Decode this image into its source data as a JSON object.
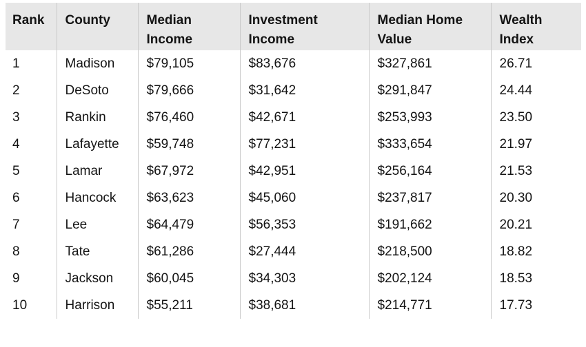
{
  "colors": {
    "header_bg": "#e7e7e7",
    "separator": "#c9c9c9",
    "text": "#141414",
    "body_bg": "#ffffff"
  },
  "chart_data": {
    "type": "table",
    "title": "",
    "columns": [
      "Rank",
      "County",
      "Median Income",
      "Investment Income",
      "Median Home Value",
      "Wealth Index"
    ],
    "header_labels_display": [
      "Rank",
      "County",
      "Median\nIncome",
      "Investment\nIncome",
      "Median Home\nValue",
      "Wealth\nIndex"
    ],
    "rows": [
      {
        "rank": "1",
        "county": "Madison",
        "median_income": "$79,105",
        "investment_income": "$83,676",
        "median_home_value": "$327,861",
        "wealth_index": "26.71"
      },
      {
        "rank": "2",
        "county": "DeSoto",
        "median_income": "$79,666",
        "investment_income": "$31,642",
        "median_home_value": "$291,847",
        "wealth_index": "24.44"
      },
      {
        "rank": "3",
        "county": "Rankin",
        "median_income": "$76,460",
        "investment_income": "$42,671",
        "median_home_value": "$253,993",
        "wealth_index": "23.50"
      },
      {
        "rank": "4",
        "county": "Lafayette",
        "median_income": "$59,748",
        "investment_income": "$77,231",
        "median_home_value": "$333,654",
        "wealth_index": "21.97"
      },
      {
        "rank": "5",
        "county": "Lamar",
        "median_income": "$67,972",
        "investment_income": "$42,951",
        "median_home_value": "$256,164",
        "wealth_index": "21.53"
      },
      {
        "rank": "6",
        "county": "Hancock",
        "median_income": "$63,623",
        "investment_income": "$45,060",
        "median_home_value": "$237,817",
        "wealth_index": "20.30"
      },
      {
        "rank": "7",
        "county": "Lee",
        "median_income": "$64,479",
        "investment_income": "$56,353",
        "median_home_value": "$191,662",
        "wealth_index": "20.21"
      },
      {
        "rank": "8",
        "county": "Tate",
        "median_income": "$61,286",
        "investment_income": "$27,444",
        "median_home_value": "$218,500",
        "wealth_index": "18.82"
      },
      {
        "rank": "9",
        "county": "Jackson",
        "median_income": "$60,045",
        "investment_income": "$34,303",
        "median_home_value": "$202,124",
        "wealth_index": "18.53"
      },
      {
        "rank": "10",
        "county": "Harrison",
        "median_income": "$55,211",
        "investment_income": "$38,681",
        "median_home_value": "$214,771",
        "wealth_index": "17.73"
      }
    ]
  }
}
